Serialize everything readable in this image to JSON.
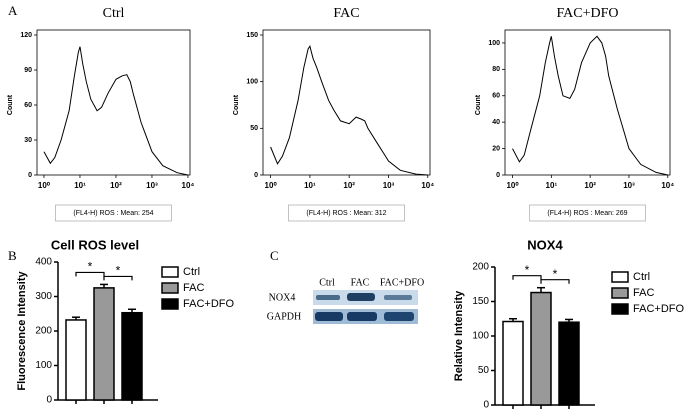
{
  "panels": {
    "a": "A",
    "b": "B",
    "c": "C"
  },
  "blot": {
    "lanes": [
      "Ctrl",
      "FAC",
      "FAC+DFO"
    ],
    "rows": [
      "NOX4",
      "GAPDH"
    ]
  },
  "chart_data": [
    {
      "type": "line",
      "title": "Ctrl",
      "ylabel": "Count",
      "caption": "(FL4-H) ROS : Mean: 254",
      "color": "#000000",
      "xscale": "log",
      "xlim": [
        0.64,
        11400
      ],
      "xticks": [
        {
          "value": 1,
          "label": "10⁰"
        },
        {
          "value": 10,
          "label": "10¹"
        },
        {
          "value": 100,
          "label": "10²"
        },
        {
          "value": 1000,
          "label": "10³"
        },
        {
          "value": 10000,
          "label": "10⁴"
        }
      ],
      "ylim": [
        0,
        120
      ],
      "yticks": [
        0,
        30,
        60,
        90,
        120
      ],
      "x": [
        1,
        1.5,
        2,
        3,
        5,
        7,
        9,
        10,
        12,
        15,
        20,
        30,
        40,
        60,
        100,
        150,
        200,
        250,
        300,
        500,
        1000,
        2000,
        5000,
        10000
      ],
      "values": [
        20,
        10,
        15,
        30,
        55,
        85,
        105,
        110,
        95,
        80,
        65,
        55,
        58,
        70,
        82,
        85,
        86,
        80,
        70,
        45,
        20,
        8,
        2,
        0
      ]
    },
    {
      "type": "line",
      "title": "FAC",
      "ylabel": "Count",
      "caption": "(FL4-H) ROS : Mean: 312",
      "color": "#000000",
      "xscale": "log",
      "xlim": [
        0.64,
        11400
      ],
      "xticks": [
        {
          "value": 1,
          "label": "10⁰"
        },
        {
          "value": 10,
          "label": "10¹"
        },
        {
          "value": 100,
          "label": "10²"
        },
        {
          "value": 1000,
          "label": "10³"
        },
        {
          "value": 10000,
          "label": "10⁴"
        }
      ],
      "ylim": [
        0,
        150
      ],
      "yticks": [
        0,
        50,
        100,
        150
      ],
      "x": [
        1,
        1.5,
        2,
        3,
        5,
        7,
        9,
        10,
        12,
        15,
        20,
        30,
        40,
        60,
        100,
        150,
        200,
        250,
        300,
        500,
        1000,
        2000,
        5000,
        10000
      ],
      "values": [
        30,
        12,
        20,
        40,
        80,
        115,
        135,
        138,
        125,
        115,
        100,
        80,
        70,
        58,
        55,
        62,
        60,
        58,
        50,
        35,
        15,
        5,
        1,
        0
      ]
    },
    {
      "type": "line",
      "title": "FAC+DFO",
      "ylabel": "Count",
      "caption": "(FL4-H) ROS : Mean: 269",
      "color": "#000000",
      "xscale": "log",
      "xlim": [
        0.64,
        11400
      ],
      "xticks": [
        {
          "value": 1,
          "label": "10⁰"
        },
        {
          "value": 10,
          "label": "10¹"
        },
        {
          "value": 100,
          "label": "10²"
        },
        {
          "value": 1000,
          "label": "10³"
        },
        {
          "value": 10000,
          "label": "10⁴"
        }
      ],
      "ylim": [
        0,
        106
      ],
      "yticks": [
        0,
        20,
        40,
        60,
        80,
        100
      ],
      "x": [
        1,
        1.5,
        2,
        3,
        5,
        7,
        9,
        10,
        12,
        15,
        20,
        30,
        40,
        60,
        100,
        150,
        200,
        250,
        300,
        500,
        1000,
        2000,
        5000,
        10000
      ],
      "values": [
        20,
        10,
        15,
        35,
        60,
        85,
        100,
        105,
        90,
        75,
        60,
        58,
        65,
        85,
        100,
        105,
        100,
        90,
        75,
        50,
        20,
        8,
        2,
        0
      ]
    },
    {
      "type": "bar",
      "title": "Cell ROS level",
      "ylabel": "Fluorescence Intensity",
      "categories": [
        "Ctrl",
        "FAC",
        "FAC+DFO"
      ],
      "values": [
        232,
        325,
        253
      ],
      "errors": [
        8,
        10,
        10
      ],
      "colors": [
        "#ffffff",
        "#999999",
        "#000000"
      ],
      "ylim": [
        0,
        400
      ],
      "yticks": [
        0,
        100,
        200,
        300,
        400
      ],
      "annotations": [
        "*",
        "*"
      ],
      "legend": "right"
    },
    {
      "type": "bar",
      "title": "NOX4",
      "ylabel": "Relative Intensity",
      "categories": [
        "Ctrl",
        "FAC",
        "FAC+DFO"
      ],
      "values": [
        121,
        163,
        120
      ],
      "errors": [
        4,
        7,
        4
      ],
      "colors": [
        "#ffffff",
        "#999999",
        "#000000"
      ],
      "ylim": [
        0,
        200
      ],
      "yticks": [
        0,
        50,
        100,
        150,
        200
      ],
      "annotations": [
        "*",
        "*"
      ],
      "legend": "right"
    }
  ]
}
